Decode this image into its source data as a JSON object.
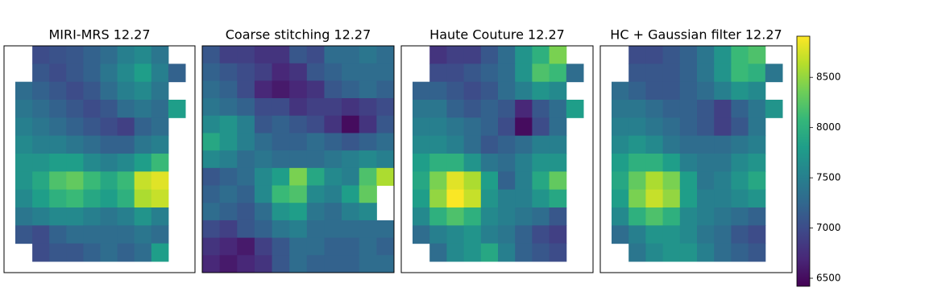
{
  "chart_data": [
    {
      "type": "heatmap",
      "title": "MIRI-MRS 12.27",
      "z": [
        [
          null,
          7000,
          7050,
          7100,
          7200,
          7300,
          7500,
          7600,
          7400,
          null
        ],
        [
          null,
          7100,
          7000,
          7100,
          7200,
          7400,
          7600,
          7800,
          7500,
          7200
        ],
        [
          7300,
          7200,
          7100,
          7000,
          7100,
          7300,
          7500,
          7600,
          7400,
          null
        ],
        [
          7400,
          7300,
          7200,
          7100,
          7000,
          7100,
          7300,
          7400,
          7300,
          7800
        ],
        [
          7500,
          7400,
          7300,
          7200,
          7100,
          7000,
          6900,
          7200,
          7300,
          null
        ],
        [
          7600,
          7500,
          7500,
          7400,
          7300,
          7200,
          7200,
          7400,
          7500,
          null
        ],
        [
          7700,
          7700,
          7800,
          7800,
          7600,
          7500,
          7600,
          7800,
          8100,
          null
        ],
        [
          7700,
          7900,
          8200,
          8300,
          8100,
          7900,
          8100,
          8700,
          8800,
          null
        ],
        [
          7600,
          7800,
          8000,
          8100,
          7900,
          7800,
          8000,
          8600,
          8700,
          null
        ],
        [
          7400,
          7500,
          7600,
          7600,
          7500,
          7400,
          7500,
          7700,
          7500,
          null
        ],
        [
          7100,
          7000,
          7200,
          7300,
          7300,
          7300,
          7300,
          7400,
          7300,
          null
        ],
        [
          null,
          7000,
          7100,
          7100,
          7200,
          7300,
          7200,
          7300,
          7800,
          null
        ]
      ]
    },
    {
      "type": "heatmap",
      "title": "Coarse stitching 12.27",
      "z": [
        [
          7100,
          6900,
          6900,
          6800,
          6800,
          7100,
          7000,
          7300,
          7300,
          7400,
          7300
        ],
        [
          7200,
          7100,
          7000,
          6900,
          6700,
          6800,
          7100,
          7200,
          7300,
          7300,
          7300
        ],
        [
          7300,
          7200,
          7000,
          6700,
          6600,
          6700,
          6800,
          7100,
          7200,
          7300,
          7200
        ],
        [
          7400,
          7300,
          7200,
          7000,
          7000,
          6800,
          6900,
          6900,
          6800,
          6900,
          7000
        ],
        [
          7600,
          7700,
          7500,
          7100,
          7200,
          7100,
          7000,
          6800,
          6500,
          6800,
          7100
        ],
        [
          7900,
          7700,
          7500,
          7300,
          7200,
          7200,
          7300,
          7200,
          7100,
          7200,
          7300
        ],
        [
          7600,
          7500,
          7300,
          7400,
          7300,
          7300,
          7300,
          7400,
          7500,
          7600,
          7500
        ],
        [
          7100,
          7200,
          7300,
          7600,
          7800,
          8400,
          7900,
          7600,
          7500,
          8200,
          8600
        ],
        [
          7200,
          7300,
          7200,
          7600,
          8100,
          8200,
          7600,
          7500,
          7800,
          8300,
          null
        ],
        [
          7300,
          7200,
          7100,
          7300,
          7700,
          7800,
          7400,
          7300,
          7500,
          7600,
          null
        ],
        [
          7000,
          6900,
          7100,
          7200,
          7400,
          7500,
          7300,
          7300,
          7300,
          7300,
          7300
        ],
        [
          6800,
          6700,
          6600,
          6900,
          7100,
          7300,
          7300,
          7200,
          7200,
          7300,
          7200
        ],
        [
          6700,
          6600,
          6700,
          6800,
          7100,
          7300,
          7200,
          7200,
          7200,
          7300,
          7300
        ]
      ]
    },
    {
      "type": "heatmap",
      "title": "Haute Couture 12.27",
      "z": [
        [
          null,
          6800,
          6900,
          6900,
          7100,
          7300,
          7700,
          8000,
          8400,
          null
        ],
        [
          null,
          7000,
          7000,
          7100,
          7200,
          7300,
          7700,
          8200,
          8100,
          7300
        ],
        [
          7200,
          7200,
          7100,
          7000,
          7100,
          7300,
          7500,
          7700,
          7600,
          null
        ],
        [
          7400,
          7400,
          7200,
          7100,
          7200,
          7100,
          6700,
          7100,
          7300,
          7800
        ],
        [
          7500,
          7500,
          7400,
          7300,
          7200,
          7000,
          6500,
          7000,
          7300,
          null
        ],
        [
          7600,
          7600,
          7500,
          7300,
          7100,
          7200,
          7300,
          7500,
          7500,
          null
        ],
        [
          7800,
          8000,
          8000,
          7700,
          7400,
          7300,
          7500,
          7700,
          7700,
          null
        ],
        [
          7900,
          8400,
          8800,
          8600,
          7800,
          7200,
          7500,
          7900,
          8300,
          null
        ],
        [
          7800,
          8500,
          8900,
          8700,
          7700,
          7500,
          7500,
          7700,
          7900,
          null
        ],
        [
          7600,
          8000,
          8200,
          8000,
          7600,
          7500,
          7400,
          7300,
          7100,
          null
        ],
        [
          7300,
          7500,
          7600,
          7700,
          7500,
          7400,
          7200,
          7000,
          6900,
          null
        ],
        [
          null,
          7300,
          7600,
          7700,
          7900,
          7500,
          7200,
          7100,
          7000,
          null
        ]
      ]
    },
    {
      "type": "heatmap",
      "title": "HC + Gaussian filter 12.27",
      "z": [
        [
          null,
          7000,
          7000,
          7100,
          7200,
          7400,
          7700,
          8100,
          8200,
          null
        ],
        [
          null,
          7100,
          7100,
          7100,
          7200,
          7400,
          7700,
          8100,
          8000,
          7400
        ],
        [
          7300,
          7200,
          7100,
          7100,
          7200,
          7300,
          7500,
          7700,
          7600,
          null
        ],
        [
          7400,
          7400,
          7300,
          7200,
          7200,
          7100,
          6900,
          7200,
          7400,
          7700
        ],
        [
          7500,
          7500,
          7400,
          7300,
          7200,
          7100,
          6900,
          7100,
          7400,
          null
        ],
        [
          7600,
          7700,
          7600,
          7400,
          7300,
          7300,
          7300,
          7400,
          7500,
          null
        ],
        [
          7800,
          8000,
          8000,
          7800,
          7500,
          7400,
          7400,
          7600,
          7700,
          null
        ],
        [
          7900,
          8300,
          8600,
          8400,
          7800,
          7400,
          7500,
          7700,
          7900,
          null
        ],
        [
          7800,
          8400,
          8700,
          8500,
          7800,
          7500,
          7500,
          7600,
          7700,
          null
        ],
        [
          7600,
          8000,
          8200,
          8000,
          7600,
          7500,
          7400,
          7300,
          7200,
          null
        ],
        [
          7300,
          7500,
          7700,
          7700,
          7600,
          7400,
          7300,
          7100,
          7000,
          null
        ],
        [
          null,
          7400,
          7600,
          7700,
          7700,
          7500,
          7300,
          7200,
          7100,
          null
        ]
      ]
    },
    {
      "type": "colorbar",
      "colormap": "viridis",
      "ylim": [
        6420,
        8910
      ],
      "yticks": [
        6500,
        7000,
        7500,
        8000,
        8500
      ]
    }
  ]
}
